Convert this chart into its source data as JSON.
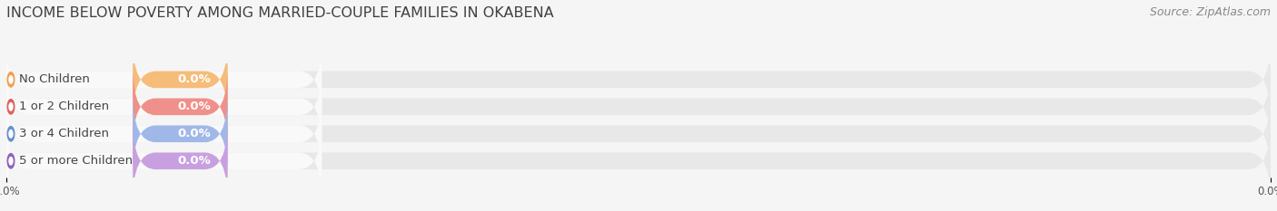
{
  "title": "INCOME BELOW POVERTY AMONG MARRIED-COUPLE FAMILIES IN OKABENA",
  "source": "Source: ZipAtlas.com",
  "categories": [
    "No Children",
    "1 or 2 Children",
    "3 or 4 Children",
    "5 or more Children"
  ],
  "values": [
    0.0,
    0.0,
    0.0,
    0.0
  ],
  "bar_colors": [
    "#f5bc7a",
    "#f0908a",
    "#a0b8e8",
    "#c8a0e0"
  ],
  "dot_colors": [
    "#f0a050",
    "#e06060",
    "#6890d0",
    "#9060c0"
  ],
  "background_color": "#f5f5f5",
  "bar_bg_color": "#e8e8e8",
  "white_section_color": "#f9f9f9",
  "label_color": "#555555",
  "title_color": "#404040",
  "source_color": "#888888",
  "tick_fontsize": 8.5,
  "title_fontsize": 11.5,
  "label_fontsize": 9.5,
  "value_fontsize": 9.5,
  "source_fontsize": 9
}
